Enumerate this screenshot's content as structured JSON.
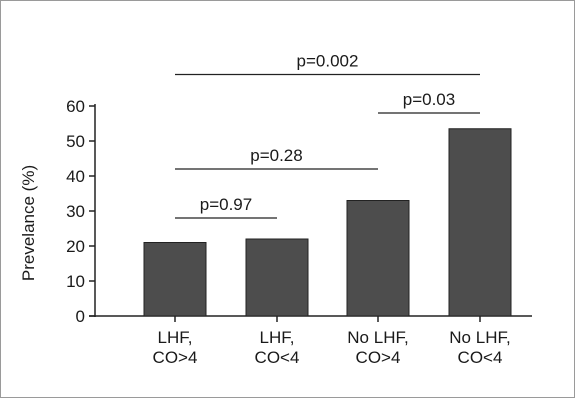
{
  "chart_data": {
    "type": "bar",
    "categories": [
      [
        "LHF,",
        "CO>4"
      ],
      [
        "LHF,",
        "CO<4"
      ],
      [
        "No LHF,",
        "CO>4"
      ],
      [
        "No LHF,",
        "CO<4"
      ]
    ],
    "values": [
      21,
      22,
      33,
      53.5
    ],
    "title": "",
    "xlabel": "",
    "ylabel": "Prevelance (%)",
    "ylim": [
      0,
      60
    ],
    "yticks": [
      0,
      10,
      20,
      30,
      40,
      50,
      60
    ],
    "grid": false,
    "legend": "none",
    "bar_color": "#4d4d4d",
    "annotations": [
      {
        "text": "p=0.97",
        "from": 0,
        "to": 1,
        "level": 28
      },
      {
        "text": "p=0.28",
        "from": 0,
        "to": 2,
        "level": 42
      },
      {
        "text": "p=0.03",
        "from": 2,
        "to": 3,
        "level": 58
      },
      {
        "text": "p=0.002",
        "from": 0,
        "to": 3,
        "level": 69
      }
    ]
  }
}
